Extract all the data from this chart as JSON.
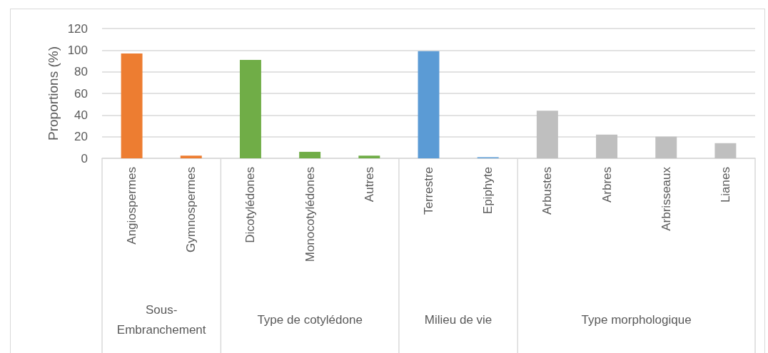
{
  "chart_data": {
    "type": "bar",
    "ylabel": "Proportions (%)",
    "categories": [
      "Angiospermes",
      "Gymnospermes",
      "Dicotylédones",
      "Monocotylédones",
      "Autres",
      "Terrestre",
      "Epiphyte",
      "Arbustes",
      "Arbres",
      "Arbrisseaux",
      "Lianes"
    ],
    "series": [
      {
        "color": "#ed7d31",
        "values": [
          97,
          2.5,
          null,
          null,
          null,
          null,
          null,
          null,
          null,
          null,
          null
        ]
      },
      {
        "color": "#70ad47",
        "values": [
          null,
          null,
          91,
          6,
          2.5,
          null,
          null,
          null,
          null,
          null,
          null
        ]
      },
      {
        "color": "#5b9bd5",
        "values": [
          null,
          null,
          null,
          null,
          null,
          99,
          1,
          null,
          null,
          null,
          null
        ]
      },
      {
        "color": "#bfbfbf",
        "values": [
          null,
          null,
          null,
          null,
          null,
          null,
          null,
          44,
          22,
          20,
          14
        ]
      }
    ],
    "annotations": [
      "Sous-Embranchement",
      "Type de cotylédone",
      "Milieu de vie",
      "Type morphologique"
    ],
    "ylim": [
      0,
      120
    ],
    "yticks": [
      0,
      20,
      40,
      60,
      80,
      100,
      120
    ],
    "grid": "y"
  }
}
